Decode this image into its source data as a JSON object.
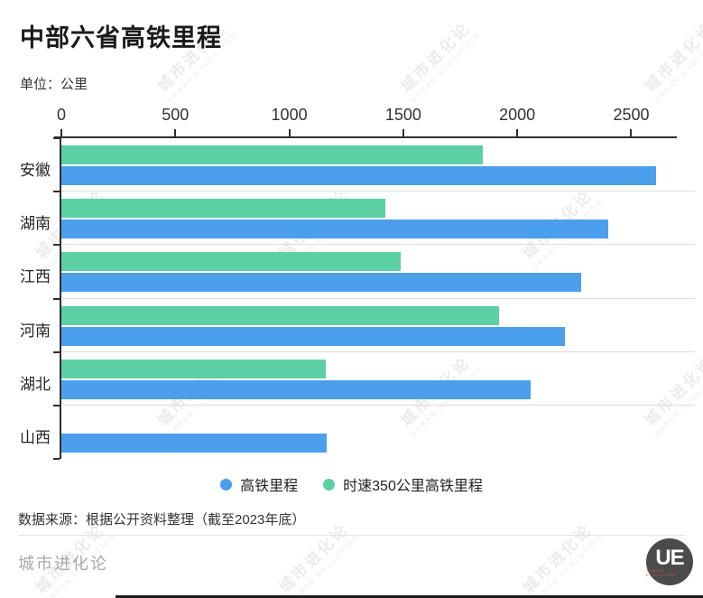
{
  "title": "中部六省高铁里程",
  "unit_label": "单位：公里",
  "chart_data": {
    "type": "bar",
    "orientation": "horizontal",
    "title": "中部六省高铁里程",
    "xlabel": "公里",
    "ylabel": "",
    "categories": [
      "安徽",
      "湖南",
      "江西",
      "河南",
      "湖北",
      "山西"
    ],
    "series": [
      {
        "name": "高铁里程",
        "color": "#4b9fed",
        "values": [
          2610,
          2400,
          2280,
          2210,
          2060,
          1165
        ]
      },
      {
        "name": "时速350公里高铁里程",
        "color": "#5bd0a4",
        "values": [
          1850,
          1420,
          1490,
          1920,
          1160,
          0
        ]
      }
    ],
    "xlim": [
      0,
      2700
    ],
    "xticks": [
      0,
      500,
      1000,
      1500,
      2000,
      2500
    ],
    "grid": "row-separators",
    "legend_position": "bottom"
  },
  "legend": [
    {
      "label": "高铁里程",
      "color": "#4b9fed"
    },
    {
      "label": "时速350公里高铁里程",
      "color": "#5bd0a4"
    }
  ],
  "source": "数据来源：根据公开资料整理（截至2023年底）",
  "footer": {
    "brand": "城市进化论",
    "logo_text": "UE",
    "logo_subtext": "URBAN EVOLUTION"
  },
  "watermark": {
    "line1": "城市进化论",
    "line2": "URBAN EVOLUTION"
  },
  "colors": {
    "blue": "#4b9fed",
    "green": "#5bd0a4",
    "axis": "#2f2f2f",
    "separator": "#dcdcdc",
    "title_text": "#1a1a1a",
    "body_text": "#333333",
    "brand_text": "#a8a8a8",
    "logo_bg": "#4b4b4b"
  }
}
